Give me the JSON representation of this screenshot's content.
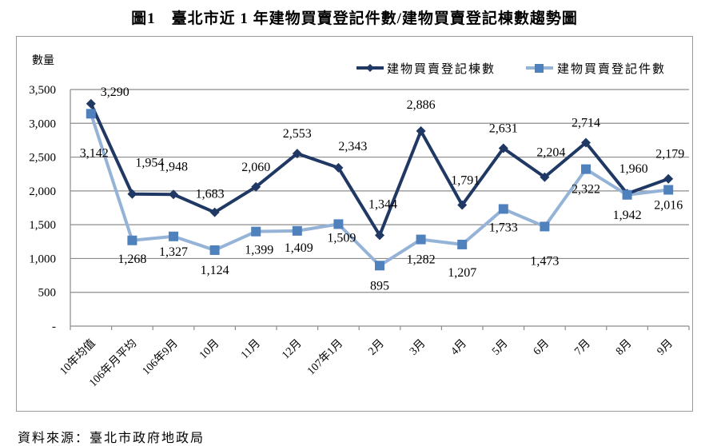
{
  "title": "圖1　臺北市近 1 年建物買賣登記件數/建物買賣登記棟數趨勢圖",
  "source": "資料來源：臺北市政府地政局",
  "colors": {
    "series_buildings": "#1F3864",
    "series_cases_line": "#95B3D7",
    "series_cases_marker": "#4F81BD",
    "grid": "#8c8c8c",
    "frame": "#9a9a9a"
  },
  "chart_data": {
    "type": "line",
    "title": "臺北市近 1 年建物買賣登記件數/建物買賣登記棟數趨勢圖",
    "xlabel": "",
    "ylabel": "數量",
    "ylim": [
      0,
      3500
    ],
    "yticks": [
      0,
      500,
      1000,
      1500,
      2000,
      2500,
      3000,
      3500
    ],
    "ytick_labels": [
      "-",
      "500",
      "1,000",
      "1,500",
      "2,000",
      "2,500",
      "3,000",
      "3,500"
    ],
    "grid": true,
    "legend_position": "top-right",
    "categories": [
      "10年均值",
      "106年月平均",
      "106年9月",
      "10月",
      "11月",
      "12月",
      "107年1月",
      "2月",
      "3月",
      "4月",
      "5月",
      "6月",
      "7月",
      "8月",
      "9月"
    ],
    "series": [
      {
        "name": "建物買賣登記棟數",
        "marker": "diamond",
        "color": "#1F3864",
        "values": [
          3290,
          1954,
          1948,
          1683,
          2060,
          2553,
          2343,
          1344,
          2886,
          1791,
          2631,
          2204,
          2714,
          1960,
          2179
        ],
        "labels": [
          "3,290",
          "1,954",
          "1,948",
          "1,683",
          "2,060",
          "2,553",
          "2,343",
          "1,344",
          "2,886",
          "1,791",
          "2,631",
          "2,204",
          "2,714",
          "1,960",
          "2,179"
        ]
      },
      {
        "name": "建物買賣登記件數",
        "marker": "square",
        "color": "#95B3D7",
        "values": [
          3142,
          1268,
          1327,
          1124,
          1399,
          1409,
          1509,
          895,
          1282,
          1207,
          1733,
          1473,
          2322,
          1942,
          2016
        ],
        "labels": [
          "3,142",
          "1,268",
          "1,327",
          "1,124",
          "1,399",
          "1,409",
          "1,509",
          "895",
          "1,282",
          "1,207",
          "1,733",
          "1,473",
          "2,322",
          "1,942",
          "2,016"
        ]
      }
    ]
  }
}
